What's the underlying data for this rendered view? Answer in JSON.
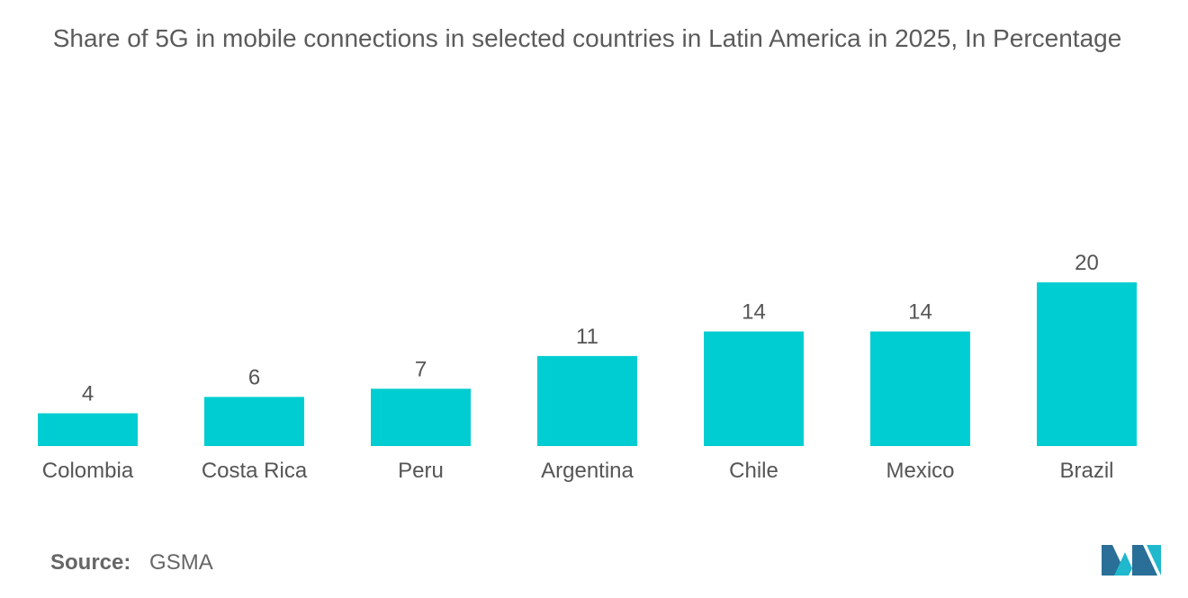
{
  "title": "Share of 5G in mobile connections in selected countries in Latin America in 2025, In Percentage",
  "source": {
    "label": "Source:",
    "value": "GSMA"
  },
  "colors": {
    "bar": "#00cdd1",
    "text": "#555555",
    "logo_dark": "#2a6f97",
    "logo_light": "#1fb8cd"
  },
  "logo_icon": "mordor-intelligence-logo",
  "chart_data": {
    "type": "bar",
    "title": "Share of 5G in mobile connections in selected countries in Latin America in 2025, In Percentage",
    "categories": [
      "Colombia",
      "Costa Rica",
      "Peru",
      "Argentina",
      "Chile",
      "Mexico",
      "Brazil"
    ],
    "values": [
      4,
      6,
      7,
      11,
      14,
      14,
      20
    ],
    "xlabel": "",
    "ylabel": "",
    "ylim": [
      0,
      20
    ],
    "grid": false,
    "legend": "none",
    "data_labels": true
  }
}
